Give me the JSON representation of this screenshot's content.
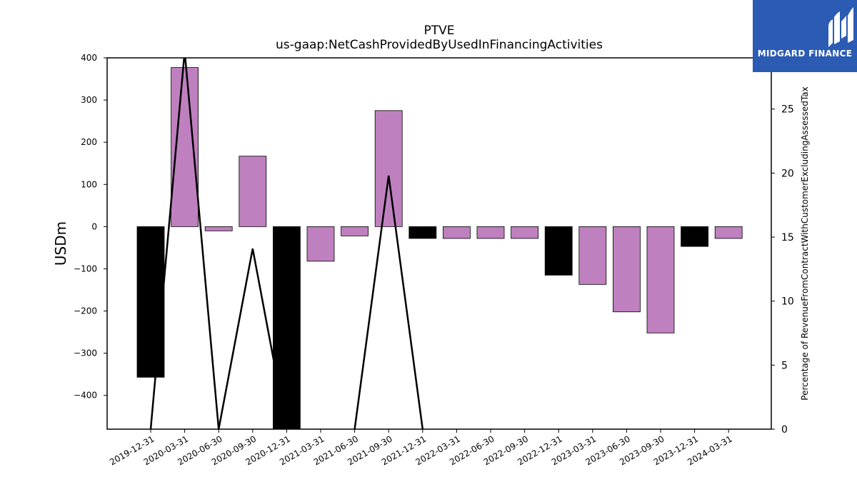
{
  "chart_data": {
    "type": "bar+line",
    "title": "PTVE",
    "subtitle": "us-gaap:NetCashProvidedByUsedInFinancingActivities",
    "ylabel": "USDm",
    "y2label": "Percentage of RevenueFromContractWithCustomerExcludingAssessedTax",
    "categories": [
      "2019-12-31",
      "2020-03-31",
      "2020-06-30",
      "2020-09-30",
      "2020-12-31",
      "2021-03-31",
      "2021-06-30",
      "2021-09-30",
      "2021-12-31",
      "2022-03-31",
      "2022-06-30",
      "2022-09-30",
      "2022-12-31",
      "2023-03-31",
      "2023-06-30",
      "2023-09-30",
      "2023-12-31",
      "2024-03-31"
    ],
    "bar_values": [
      -357,
      377,
      -10,
      167,
      -480,
      -82,
      -22,
      275,
      -28,
      -28,
      -28,
      -28,
      -115,
      -137,
      -202,
      -252,
      -47,
      -28
    ],
    "bar_kinds": [
      "annual",
      "quarter",
      "quarter",
      "quarter",
      "annual",
      "quarter",
      "quarter",
      "quarter",
      "annual",
      "quarter",
      "quarter",
      "quarter",
      "annual",
      "quarter",
      "quarter",
      "quarter",
      "annual",
      "quarter"
    ],
    "line_values": [
      0,
      29.5,
      0,
      14.1,
      0,
      null,
      0,
      19.8,
      0,
      null,
      null,
      null,
      null,
      null,
      null,
      null,
      null,
      null
    ],
    "ylim": [
      -480,
      400
    ],
    "y2lim": [
      0,
      29
    ],
    "yticks": [
      -400,
      -300,
      -200,
      -100,
      0,
      100,
      200,
      300,
      400
    ],
    "y2ticks": [
      0,
      5,
      10,
      15,
      20,
      25
    ],
    "colors": {
      "annual": "#000000",
      "quarter": "#bf80bf",
      "line": "#000000"
    }
  },
  "logo": {
    "text": "MIDGARD FINANCE",
    "icon": "midgard-logo-icon"
  }
}
